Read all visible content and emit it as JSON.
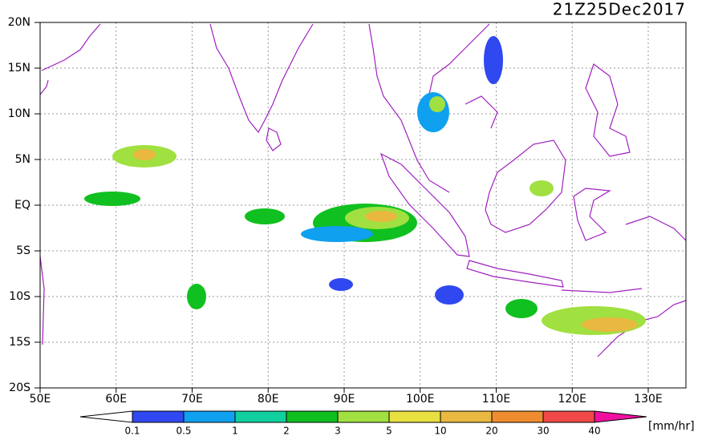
{
  "title": "21Z25Dec2017",
  "lat_labels": [
    "20N",
    "15N",
    "10N",
    "5N",
    "EQ",
    "5S",
    "10S",
    "15S",
    "20S"
  ],
  "lon_labels": [
    "50E",
    "60E",
    "70E",
    "80E",
    "90E",
    "100E",
    "110E",
    "120E",
    "130E"
  ],
  "colorbar": {
    "levels": [
      0.1,
      0.5,
      1,
      2,
      3,
      5,
      10,
      20,
      30,
      40
    ],
    "colors": [
      "#3048f0",
      "#10a0f0",
      "#10d0a0",
      "#10c020",
      "#a0e040",
      "#e8e040",
      "#e8b840",
      "#f08c30",
      "#f04848",
      "#f010a0"
    ],
    "unit": "[mm/hr]"
  }
}
